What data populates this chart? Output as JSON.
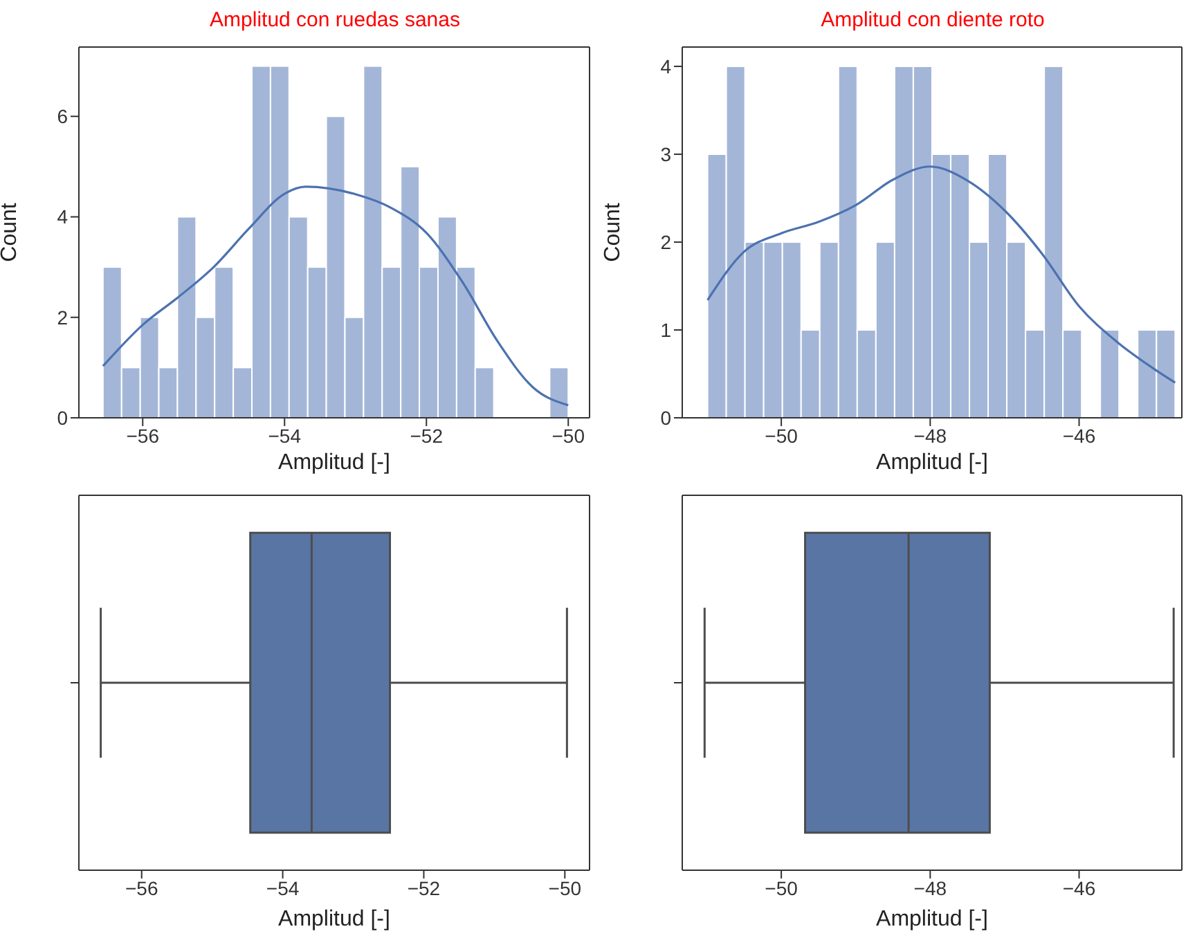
{
  "chart_data": [
    {
      "type": "histogram",
      "title": "Amplitud con ruedas sanas",
      "xlabel": "Amplitud [-]",
      "ylabel": "Count",
      "xlim": [
        -56.9,
        -49.7
      ],
      "xticks": [
        -56,
        -54,
        -52,
        -50
      ],
      "ylim": [
        0,
        7.38
      ],
      "yticks": [
        0,
        2,
        4,
        6
      ],
      "series": [
        {
          "type": "histogram",
          "color": "#a4b6d8",
          "bins": [
            -56.56,
            -56.2976,
            -56.0352,
            -55.7728,
            -55.5104,
            -55.248,
            -54.9856,
            -54.7232,
            -54.4608,
            -54.1984,
            -53.936,
            -53.6736,
            -53.4112,
            -53.1488,
            -52.8864,
            -52.624,
            -52.3616,
            -52.0992,
            -51.8368,
            -51.5744,
            -51.312,
            -51.0496,
            -50.7872,
            -50.5248,
            -50.2624,
            -50.0
          ],
          "values": [
            3,
            1,
            2,
            1,
            4,
            2,
            3,
            1,
            7,
            7,
            4,
            3,
            6,
            2,
            7,
            3,
            5,
            3,
            4,
            3,
            1,
            0,
            0,
            0,
            1
          ]
        },
        {
          "type": "line",
          "color": "#4c72b0",
          "x": [
            -56.56,
            -56.0,
            -55.5,
            -55.0,
            -54.5,
            -54.0,
            -53.7,
            -53.0,
            -52.5,
            -52.0,
            -51.5,
            -51.0,
            -50.5,
            -50.0
          ],
          "values": [
            1.03,
            1.85,
            2.4,
            3.0,
            3.77,
            4.46,
            4.6,
            4.45,
            4.18,
            3.68,
            2.72,
            1.53,
            0.61,
            0.25
          ]
        }
      ]
    },
    {
      "type": "histogram",
      "title": "Amplitud con diente roto",
      "xlabel": "Amplitud [-]",
      "ylabel": "Count",
      "xlim": [
        -51.33,
        -44.62
      ],
      "xticks": [
        -50,
        -48,
        -46
      ],
      "ylim": [
        0,
        4.22
      ],
      "yticks": [
        0,
        1,
        2,
        3,
        4
      ],
      "series": [
        {
          "type": "histogram",
          "color": "#a4b6d8",
          "bins": [
            -50.99,
            -50.7388,
            -50.4876,
            -50.2364,
            -49.9852,
            -49.734,
            -49.4828,
            -49.2316,
            -48.9804,
            -48.7292,
            -48.478,
            -48.2268,
            -47.9756,
            -47.7244,
            -47.4732,
            -47.222,
            -46.9708,
            -46.7196,
            -46.4684,
            -46.2172,
            -45.966,
            -45.7148,
            -45.4636,
            -45.2124,
            -44.9612,
            -44.71
          ],
          "values": [
            3,
            4,
            2,
            2,
            2,
            1,
            2,
            4,
            1,
            2,
            4,
            4,
            3,
            3,
            2,
            3,
            2,
            1,
            4,
            1,
            0,
            1,
            0,
            1,
            1
          ]
        },
        {
          "type": "line",
          "color": "#4c72b0",
          "x": [
            -50.99,
            -50.5,
            -50.0,
            -49.5,
            -49.0,
            -48.5,
            -48.0,
            -47.5,
            -47.0,
            -46.5,
            -46.0,
            -45.5,
            -45.0,
            -44.71
          ],
          "values": [
            1.34,
            1.89,
            2.1,
            2.23,
            2.42,
            2.71,
            2.86,
            2.7,
            2.36,
            1.87,
            1.27,
            0.87,
            0.56,
            0.4
          ]
        }
      ]
    },
    {
      "type": "box",
      "orientation": "horizontal",
      "xlabel": "Amplitud [-]",
      "xlim": [
        -56.89,
        -49.65
      ],
      "xticks": [
        -56,
        -54,
        -52,
        -50
      ],
      "categories": [
        null
      ],
      "color": "#5875a4",
      "boxes": [
        {
          "low": -56.58,
          "q1": -54.46,
          "median": -53.59,
          "q3": -52.48,
          "high": -49.97
        }
      ]
    },
    {
      "type": "box",
      "orientation": "horizontal",
      "xlabel": "Amplitud [-]",
      "xlim": [
        -51.33,
        -44.62
      ],
      "xticks": [
        -50,
        -48,
        -46
      ],
      "categories": [
        null
      ],
      "color": "#5875a4",
      "boxes": [
        {
          "low": -51.03,
          "q1": -49.68,
          "median": -48.29,
          "q3": -47.2,
          "high": -44.73
        }
      ]
    }
  ]
}
